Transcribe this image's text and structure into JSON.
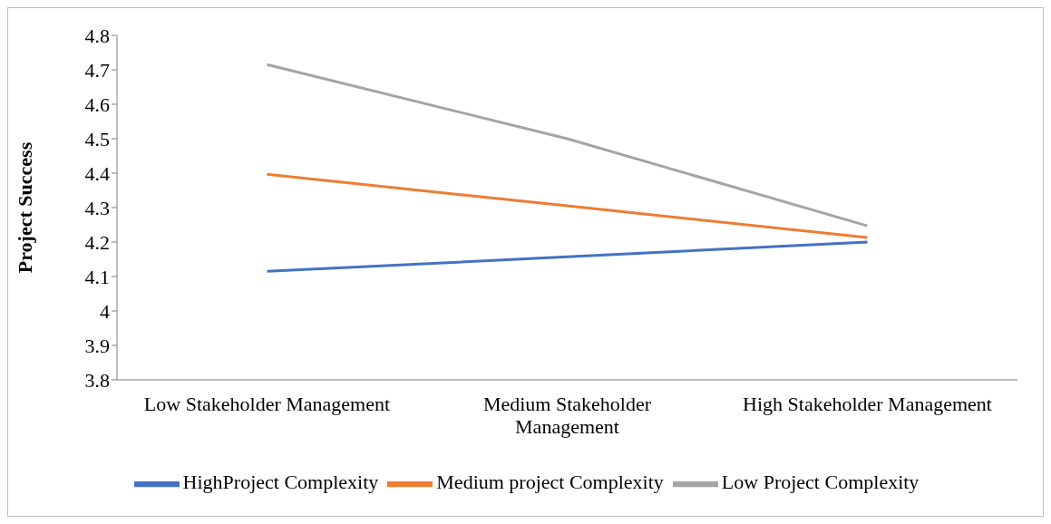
{
  "chart_data": {
    "type": "line",
    "ylabel": "Project Success",
    "categories": [
      "Low Stakeholder Management",
      "Medium Stakeholder Management",
      "High Stakeholder Management"
    ],
    "series": [
      {
        "name": "HighProject Complexity",
        "color": "#4472c4",
        "values": [
          4.115,
          4.157,
          4.2
        ]
      },
      {
        "name": "Medium project Complexity",
        "color": "#ed7d31",
        "values": [
          4.397,
          4.305,
          4.213
        ]
      },
      {
        "name": "Low Project Complexity",
        "color": "#a5a5a5",
        "values": [
          4.715,
          4.5,
          4.247
        ]
      }
    ],
    "ylim": [
      3.8,
      4.8
    ],
    "yticks": [
      3.8,
      3.9,
      4,
      4.1,
      4.2,
      4.3,
      4.4,
      4.5,
      4.6,
      4.7,
      4.8
    ],
    "grid": false,
    "legend": "bottom",
    "marker": "none",
    "line_style": "solid"
  }
}
